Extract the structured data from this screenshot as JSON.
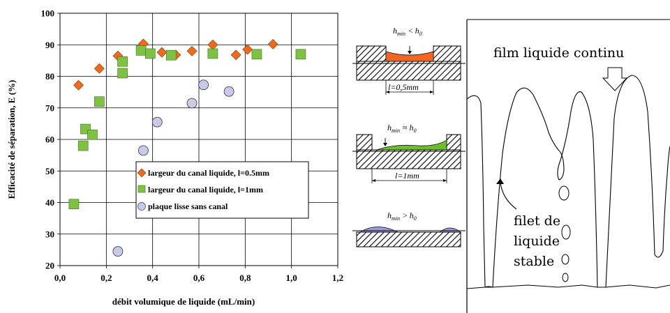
{
  "chart_data": {
    "type": "scatter",
    "xlabel": "débit volumique de liquide (mL/min)",
    "ylabel": "Efficacité de séparation, E (%)",
    "xlim": [
      0.0,
      1.2
    ],
    "ylim": [
      20,
      100
    ],
    "xticks": [
      "0,0",
      "0,2",
      "0,4",
      "0,6",
      "0,8",
      "1,0",
      "1,2"
    ],
    "yticks": [
      "20",
      "30",
      "40",
      "50",
      "60",
      "70",
      "80",
      "90",
      "100"
    ],
    "grid": true,
    "legend_position": "lower-right",
    "series": [
      {
        "name": "largeur du canal liquide, l=0.5mm",
        "marker": "diamond",
        "color": "#f06a1e",
        "points": [
          [
            0.08,
            77.2
          ],
          [
            0.17,
            82.5
          ],
          [
            0.25,
            86.5
          ],
          [
            0.36,
            90.3
          ],
          [
            0.44,
            87.6
          ],
          [
            0.5,
            86.8
          ],
          [
            0.57,
            88.0
          ],
          [
            0.66,
            90.0
          ],
          [
            0.76,
            86.8
          ],
          [
            0.81,
            88.5
          ],
          [
            0.92,
            90.2
          ]
        ]
      },
      {
        "name": "largeur du canal liquide, l=1mm",
        "marker": "square",
        "color": "#7dc242",
        "points": [
          [
            0.06,
            39.5
          ],
          [
            0.1,
            58.0
          ],
          [
            0.11,
            63.3
          ],
          [
            0.14,
            61.5
          ],
          [
            0.17,
            72.0
          ],
          [
            0.27,
            81.0
          ],
          [
            0.27,
            84.7
          ],
          [
            0.35,
            88.2
          ],
          [
            0.39,
            87.2
          ],
          [
            0.48,
            86.7
          ],
          [
            0.66,
            87.2
          ],
          [
            0.85,
            87.0
          ],
          [
            1.04,
            87.0
          ]
        ]
      },
      {
        "name": "plaque lisse sans canal",
        "marker": "circle",
        "color": "#c9c9ec",
        "points": [
          [
            0.25,
            24.5
          ],
          [
            0.36,
            56.5
          ],
          [
            0.42,
            65.5
          ],
          [
            0.57,
            71.5
          ],
          [
            0.62,
            77.3
          ],
          [
            0.73,
            75.2
          ]
        ]
      }
    ]
  },
  "diagrams": {
    "top": {
      "h": "h",
      "min": "min",
      "relation": "< ",
      "h0": "h",
      "zero": "0",
      "width": "l=0,5mm",
      "fill": "#f26522"
    },
    "middle": {
      "h": "h",
      "min": "min",
      "relation": "≈ ",
      "h0": "h",
      "zero": "0",
      "width": "l=1mm",
      "fill": "#6dbe2c"
    },
    "bottom": {
      "h": "h",
      "min": "min",
      "relation": "> ",
      "h0": "h",
      "zero": "0",
      "fill": "#9c9cd8"
    }
  },
  "photo": {
    "label_film": "film liquide continu",
    "label_filet_1": "filet de",
    "label_filet_2": "liquide",
    "label_filet_3": "stable"
  }
}
